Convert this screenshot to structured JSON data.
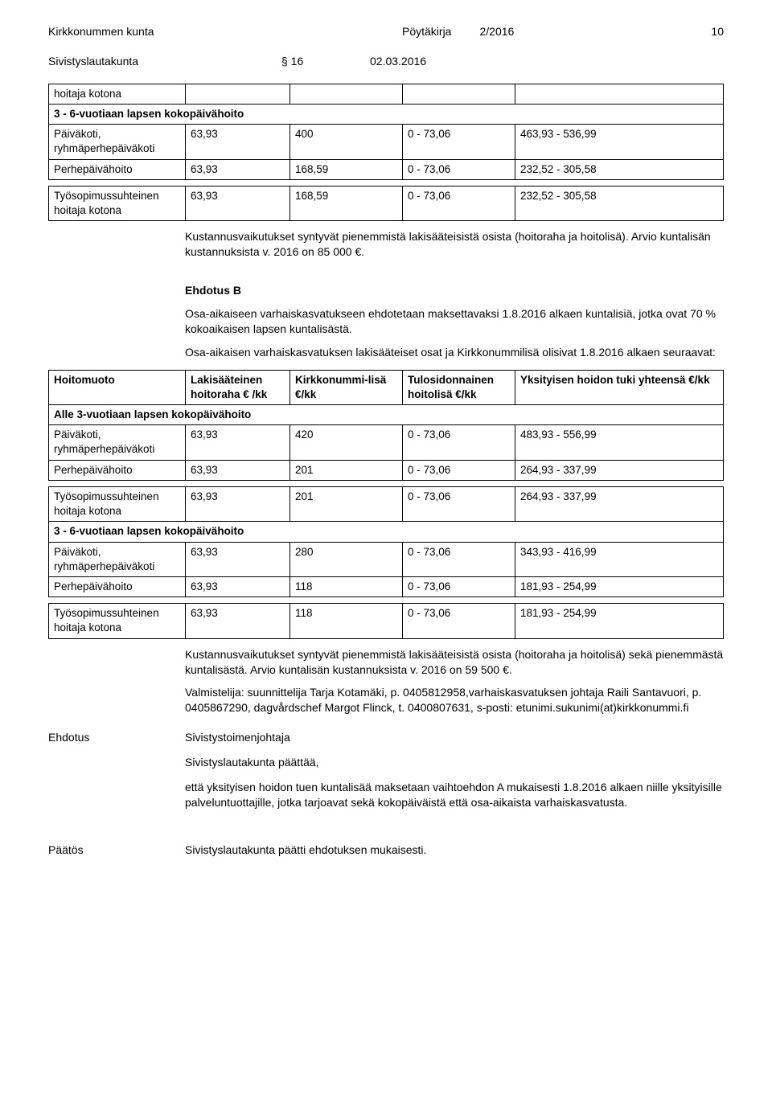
{
  "header": {
    "org": "Kirkkonummen kunta",
    "doctype": "Pöytäkirja",
    "docnum": "2/2016",
    "pagenum": "10"
  },
  "subheader": {
    "board": "Sivistyslautakunta",
    "section": "§ 16",
    "date": "02.03.2016"
  },
  "table1": {
    "rows": [
      {
        "c1": "hoitaja kotona",
        "c2": "",
        "c3": "",
        "c4": "",
        "c5": ""
      },
      {
        "c1": "3 - 6-vuotiaan lapsen kokopäivähoito",
        "span": true,
        "bold": true
      },
      {
        "c1": "Päiväkoti, ryhmäperhepäiväkoti",
        "c2": "63,93",
        "c3": "400",
        "c4": "0 - 73,06",
        "c5": "463,93 - 536,99"
      },
      {
        "c1": "Perhepäivähoito",
        "c2": "63,93",
        "c3": "168,59",
        "c4": "0 - 73,06",
        "c5": "232,52 - 305,58"
      },
      {
        "gap": true
      },
      {
        "c1": "Työsopimussuhteinen hoitaja kotona",
        "c2": "63,93",
        "c3": "168,59",
        "c4": "0 - 73,06",
        "c5": "232,52 - 305,58"
      }
    ]
  },
  "body1": {
    "p1": "Kustannusvaikutukset syntyvät pienemmistä lakisääteisistä osista (hoitoraha ja hoitolisä). Arvio kuntalisän kustannuksista v. 2016 on 85 000 €.",
    "h1": "Ehdotus B",
    "p2": "Osa-aikaiseen varhaiskasvatukseen ehdotetaan maksettavaksi 1.8.2016 alkaen kuntalisiä, jotka ovat 70 % kokoaikaisen lapsen kuntalisästä.",
    "p3": "Osa-aikaisen varhaiskasvatuksen lakisääteiset osat ja Kirkkonummilisä olisivat 1.8.2016 alkaen seuraavat:"
  },
  "table2": {
    "header": {
      "c1": "Hoitomuoto",
      "c2": "Lakisääteinen hoitoraha € /kk",
      "c3": "Kirkkonummi-lisä €/kk",
      "c4": "Tulosidonnainen hoitolisä €/kk",
      "c5": "Yksityisen hoidon tuki yhteensä €/kk"
    },
    "rows": [
      {
        "c1": "Alle 3-vuotiaan lapsen kokopäivähoito",
        "span": true,
        "bold": true
      },
      {
        "c1": "Päiväkoti, ryhmäperhepäiväkoti",
        "c2": "63,93",
        "c3": "420",
        "c4": "0 - 73,06",
        "c5": "483,93 - 556,99"
      },
      {
        "c1": "Perhepäivähoito",
        "c2": "63,93",
        "c3": "201",
        "c4": "0 - 73,06",
        "c5": "264,93 - 337,99"
      },
      {
        "gap": true
      },
      {
        "c1": "Työsopimussuhteinen hoitaja kotona",
        "c2": "63,93",
        "c3": "201",
        "c4": "0 - 73,06",
        "c5": "264,93 - 337,99"
      },
      {
        "c1": "3 - 6-vuotiaan lapsen kokopäivähoito",
        "span": true,
        "bold": true
      },
      {
        "c1": "Päiväkoti, ryhmäperhepäiväkoti",
        "c2": "63,93",
        "c3": "280",
        "c4": "0 - 73,06",
        "c5": "343,93 - 416,99"
      },
      {
        "c1": "Perhepäivähoito",
        "c2": "63,93",
        "c3": "118",
        "c4": "0 - 73,06",
        "c5": "181,93 - 254,99"
      },
      {
        "gap": true
      },
      {
        "c1": "Työsopimussuhteinen hoitaja kotona",
        "c2": "63,93",
        "c3": "118",
        "c4": "0 - 73,06",
        "c5": "181,93 - 254,99"
      }
    ]
  },
  "body2": {
    "p1": "Kustannusvaikutukset syntyvät pienemmistä lakisääteisistä osista (hoitoraha ja hoitolisä) sekä pienemmästä kuntalisästä. Arvio kuntalisän kustannuksista v. 2016 on 59 500 €.",
    "p2": "Valmistelija: suunnittelija Tarja Kotamäki, p. 0405812958,varhaiskasvatuksen johtaja Raili Santavuori, p. 0405867290, dagvårdschef Margot Flinck, t. 0400807631, s-posti: etunimi.sukunimi(at)kirkkonummi.fi"
  },
  "ehdotus": {
    "label": "Ehdotus",
    "p1": "Sivistystoimenjohtaja",
    "p2": "Sivistyslautakunta päättää,",
    "p3": "että yksityisen hoidon tuen kuntalisää maksetaan vaihtoehdon A mukaisesti 1.8.2016 alkaen niille yksityisille palveluntuottajille, jotka tarjoavat sekä kokopäiväistä että osa-aikaista varhaiskasvatusta."
  },
  "paatos": {
    "label": "Päätös",
    "text": "Sivistyslautakunta päätti ehdotuksen mukaisesti."
  }
}
